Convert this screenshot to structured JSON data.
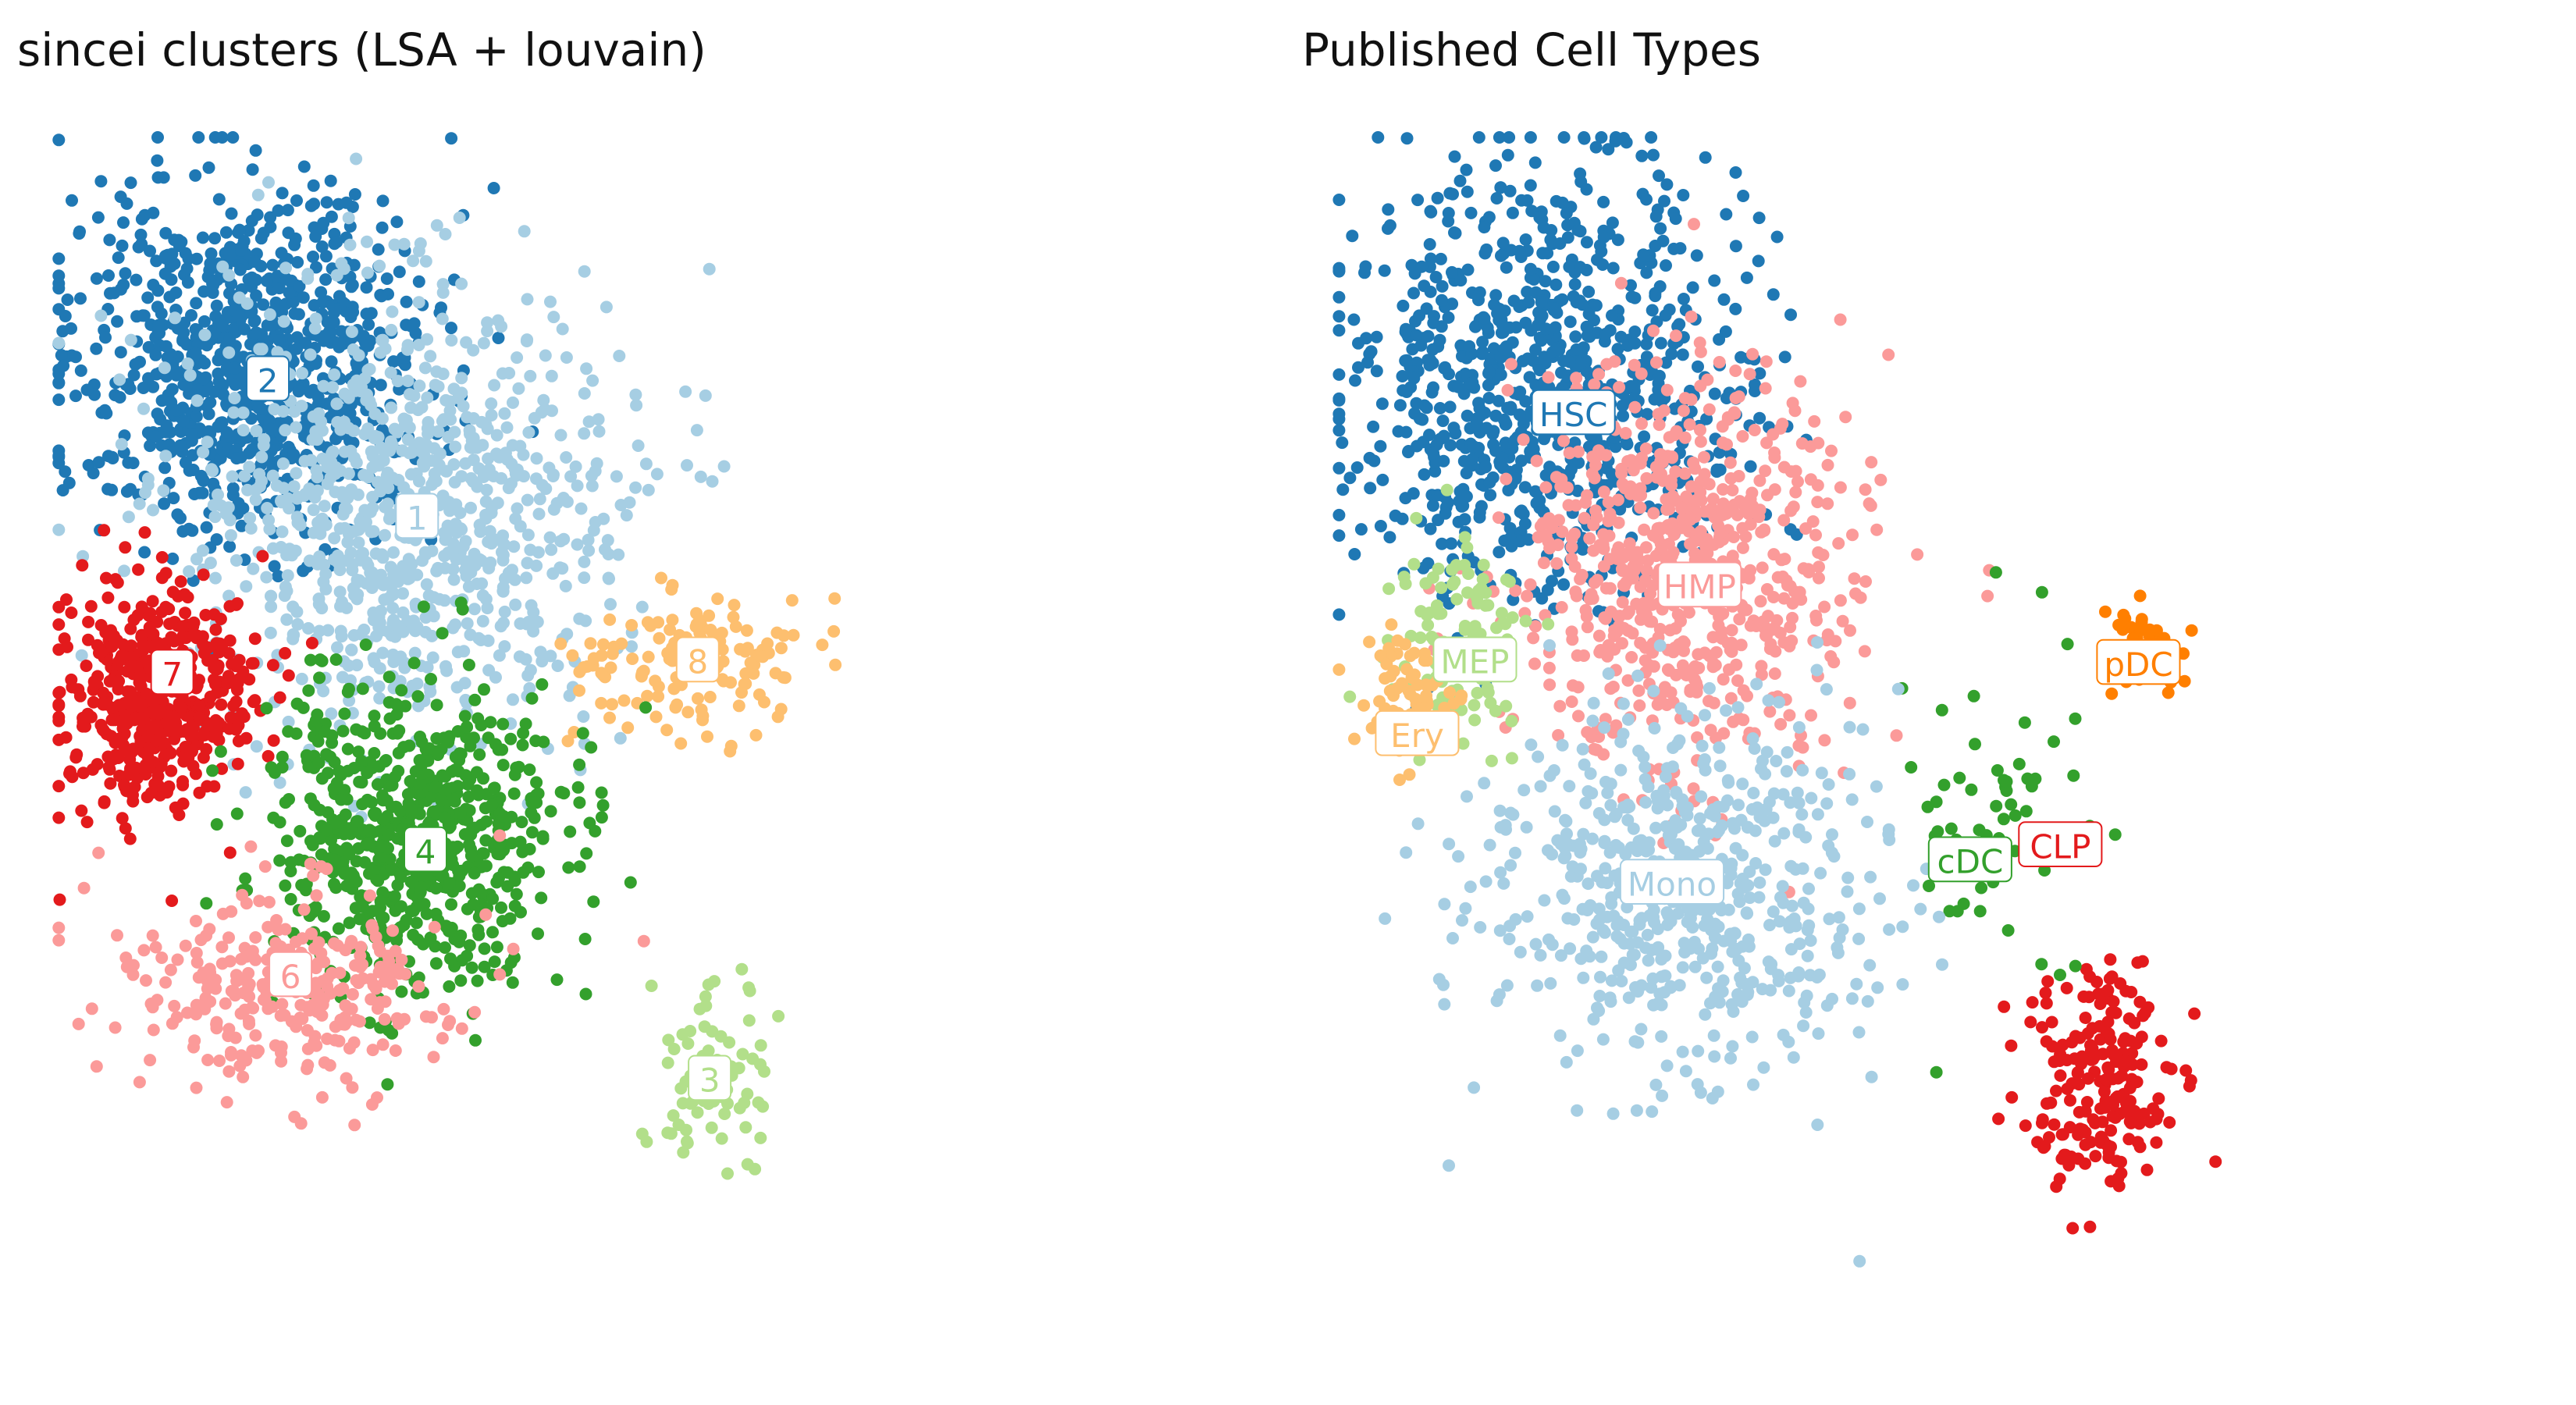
{
  "chart_data": [
    {
      "type": "scatter",
      "title": "sincei clusters (LSA + louvain)",
      "xlabel": "",
      "ylabel": "",
      "axes_visible": false,
      "grid": false,
      "legend": "on-data labels",
      "clusters": [
        {
          "name": "2",
          "color": "#1f78b4",
          "center": [
            0.17,
            0.19
          ],
          "spread": [
            0.075,
            0.07
          ],
          "n": 900,
          "label_at": [
            0.185,
            0.205
          ]
        },
        {
          "name": "1",
          "color": "#a6cee3",
          "center": [
            0.3,
            0.31
          ],
          "spread": [
            0.09,
            0.09
          ],
          "n": 900,
          "label_at": [
            0.31,
            0.315
          ]
        },
        {
          "name": "7",
          "color": "#e31a1c",
          "center": [
            0.09,
            0.46
          ],
          "spread": [
            0.04,
            0.045
          ],
          "n": 500,
          "label_at": [
            0.105,
            0.44
          ]
        },
        {
          "name": "8",
          "color": "#fdbf6f",
          "center": [
            0.54,
            0.43
          ],
          "spread": [
            0.05,
            0.03
          ],
          "n": 140,
          "label_at": [
            0.545,
            0.43
          ]
        },
        {
          "name": "4",
          "color": "#33a02c",
          "center": [
            0.31,
            0.57
          ],
          "spread": [
            0.06,
            0.06
          ],
          "n": 700,
          "label_at": [
            0.317,
            0.582
          ]
        },
        {
          "name": "6",
          "color": "#fb9a99",
          "center": [
            0.2,
            0.69
          ],
          "spread": [
            0.07,
            0.04
          ],
          "n": 300,
          "label_at": [
            0.204,
            0.682
          ]
        },
        {
          "name": "3",
          "color": "#b2df8a",
          "center": [
            0.555,
            0.76
          ],
          "spread": [
            0.025,
            0.04
          ],
          "n": 80,
          "label_at": [
            0.555,
            0.765
          ]
        }
      ]
    },
    {
      "type": "scatter",
      "title": "Published Cell Types",
      "xlabel": "",
      "ylabel": "",
      "axes_visible": false,
      "grid": false,
      "legend": "on-data labels",
      "clusters": [
        {
          "name": "HSC",
          "color": "#1f78b4",
          "center": [
            0.18,
            0.21
          ],
          "spread": [
            0.085,
            0.085
          ],
          "n": 900,
          "label_at": [
            0.205,
            0.232
          ]
        },
        {
          "name": "HMP",
          "color": "#fb9a99",
          "center": [
            0.3,
            0.35
          ],
          "spread": [
            0.07,
            0.08
          ],
          "n": 700,
          "label_at": [
            0.31,
            0.37
          ]
        },
        {
          "name": "MEP",
          "color": "#b2df8a",
          "center": [
            0.11,
            0.41
          ],
          "spread": [
            0.03,
            0.04
          ],
          "n": 120,
          "label_at": [
            0.123,
            0.43
          ]
        },
        {
          "name": "Ery",
          "color": "#fdbf6f",
          "center": [
            0.07,
            0.46
          ],
          "spread": [
            0.02,
            0.025
          ],
          "n": 80,
          "label_at": [
            0.075,
            0.489
          ]
        },
        {
          "name": "pDC",
          "color": "#ff7f00",
          "center": [
            0.675,
            0.42
          ],
          "spread": [
            0.02,
            0.015
          ],
          "n": 60,
          "label_at": [
            0.675,
            0.432
          ]
        },
        {
          "name": "CLP",
          "color": "#e31a1c",
          "center": [
            0.64,
            0.77
          ],
          "spread": [
            0.03,
            0.05
          ],
          "n": 200,
          "label_at": [
            0.61,
            0.578
          ]
        },
        {
          "name": "cDC",
          "color": "#33a02c",
          "center": [
            0.57,
            0.55
          ],
          "spread": [
            0.04,
            0.07
          ],
          "n": 60,
          "label_at": [
            0.535,
            0.59
          ]
        },
        {
          "name": "Mono",
          "color": "#a6cee3",
          "center": [
            0.29,
            0.61
          ],
          "spread": [
            0.08,
            0.07
          ],
          "n": 600,
          "label_at": [
            0.287,
            0.608
          ]
        }
      ]
    }
  ]
}
